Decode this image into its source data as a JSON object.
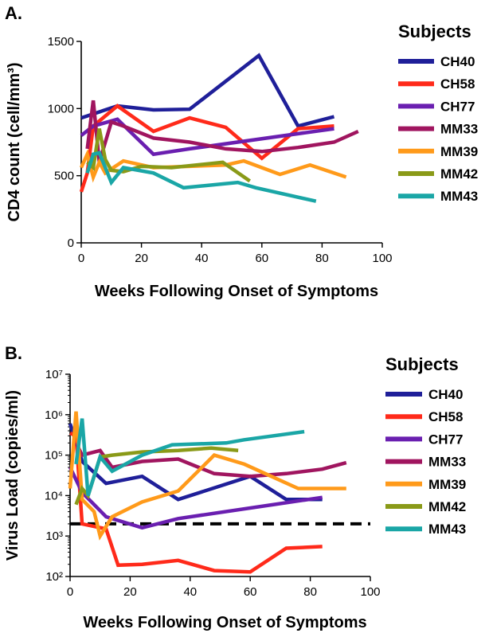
{
  "chart_data": [
    {
      "panel": "A.",
      "type": "line",
      "xlabel": "Weeks Following Onset of Symptoms",
      "ylabel": "CD4 count (cell/mm³)",
      "xlim": [
        0,
        100
      ],
      "ylim": [
        0,
        1500
      ],
      "xticks": [
        0,
        20,
        40,
        60,
        80,
        100
      ],
      "yticks": [
        0,
        500,
        1000,
        1500
      ],
      "legend_title": "Subjects",
      "legend_position": "right",
      "series": [
        {
          "name": "CH40",
          "color": "#1f1f99",
          "points": [
            [
              0,
              930
            ],
            [
              12,
              1020
            ],
            [
              24,
              990
            ],
            [
              36,
              995
            ],
            [
              59,
              1395
            ],
            [
              72,
              870
            ],
            [
              84,
              940
            ]
          ]
        },
        {
          "name": "CH58",
          "color": "#ff2a1a",
          "points": [
            [
              0,
              380
            ],
            [
              2,
              520
            ],
            [
              4,
              870
            ],
            [
              12,
              1020
            ],
            [
              24,
              830
            ],
            [
              36,
              930
            ],
            [
              48,
              860
            ],
            [
              60,
              630
            ],
            [
              72,
              850
            ],
            [
              84,
              870
            ]
          ]
        },
        {
          "name": "CH77",
          "color": "#6a1fb0",
          "points": [
            [
              0,
              800
            ],
            [
              4,
              870
            ],
            [
              12,
              920
            ],
            [
              24,
              660
            ],
            [
              36,
              700
            ],
            [
              84,
              850
            ]
          ]
        },
        {
          "name": "MM33",
          "color": "#a0155f",
          "points": [
            [
              2,
              700
            ],
            [
              4,
              1060
            ],
            [
              6,
              600
            ],
            [
              10,
              900
            ],
            [
              14,
              870
            ],
            [
              24,
              780
            ],
            [
              36,
              750
            ],
            [
              48,
              700
            ],
            [
              60,
              680
            ],
            [
              72,
              710
            ],
            [
              84,
              750
            ],
            [
              92,
              830
            ]
          ]
        },
        {
          "name": "MM39",
          "color": "#ff9a1a",
          "points": [
            [
              0,
              560
            ],
            [
              2,
              660
            ],
            [
              4,
              490
            ],
            [
              6,
              600
            ],
            [
              8,
              520
            ],
            [
              14,
              610
            ],
            [
              24,
              560
            ],
            [
              36,
              570
            ],
            [
              48,
              580
            ],
            [
              54,
              610
            ],
            [
              66,
              510
            ],
            [
              76,
              580
            ],
            [
              88,
              490
            ]
          ]
        },
        {
          "name": "MM42",
          "color": "#8a9a18",
          "points": [
            [
              2,
              600
            ],
            [
              4,
              560
            ],
            [
              6,
              850
            ],
            [
              8,
              620
            ],
            [
              10,
              540
            ],
            [
              14,
              530
            ],
            [
              20,
              570
            ],
            [
              30,
              560
            ],
            [
              47,
              600
            ],
            [
              56,
              460
            ]
          ]
        },
        {
          "name": "MM43",
          "color": "#1aa6a6",
          "points": [
            [
              2,
              520
            ],
            [
              4,
              660
            ],
            [
              6,
              670
            ],
            [
              10,
              450
            ],
            [
              14,
              560
            ],
            [
              24,
              520
            ],
            [
              34,
              410
            ],
            [
              52,
              450
            ],
            [
              58,
              410
            ],
            [
              78,
              310
            ]
          ]
        }
      ]
    },
    {
      "panel": "B.",
      "type": "line",
      "xlabel": "Weeks Following Onset of Symptoms",
      "ylabel": "Virus Load (copies/ml)",
      "yscale": "log",
      "xlim": [
        0,
        100
      ],
      "ylim": [
        100,
        10000000
      ],
      "xticks": [
        0,
        20,
        40,
        60,
        80,
        100
      ],
      "ytick_labels": [
        "10²",
        "10³",
        "10⁴",
        "10⁵",
        "10⁶",
        "10⁷"
      ],
      "threshold_line": 2000,
      "legend_title": "Subjects",
      "legend_position": "right",
      "series": [
        {
          "name": "CH40",
          "color": "#1f1f99",
          "points": [
            [
              0,
              600000
            ],
            [
              4,
              70000
            ],
            [
              12,
              20000
            ],
            [
              24,
              30000
            ],
            [
              36,
              8000
            ],
            [
              60,
              30000
            ],
            [
              72,
              8000
            ],
            [
              84,
              8000
            ]
          ]
        },
        {
          "name": "CH58",
          "color": "#ff2a1a",
          "points": [
            [
              0,
              350000
            ],
            [
              2,
              300000
            ],
            [
              4,
              2000
            ],
            [
              12,
              1500
            ],
            [
              16,
              190
            ],
            [
              24,
              200
            ],
            [
              36,
              250
            ],
            [
              48,
              140
            ],
            [
              60,
              130
            ],
            [
              72,
              500
            ],
            [
              84,
              550
            ]
          ]
        },
        {
          "name": "CH77",
          "color": "#6a1fb0",
          "points": [
            [
              0,
              50000
            ],
            [
              4,
              12000
            ],
            [
              12,
              3000
            ],
            [
              24,
              1600
            ],
            [
              36,
              2700
            ],
            [
              84,
              9000
            ]
          ]
        },
        {
          "name": "MM33",
          "color": "#a0155f",
          "points": [
            [
              2,
              200000
            ],
            [
              4,
              100000
            ],
            [
              10,
              130000
            ],
            [
              14,
              50000
            ],
            [
              24,
              70000
            ],
            [
              36,
              80000
            ],
            [
              48,
              35000
            ],
            [
              60,
              30000
            ],
            [
              72,
              35000
            ],
            [
              84,
              45000
            ],
            [
              92,
              65000
            ]
          ]
        },
        {
          "name": "MM39",
          "color": "#ff9a1a",
          "points": [
            [
              0,
              15000
            ],
            [
              2,
              1200000
            ],
            [
              4,
              8000
            ],
            [
              8,
              4000
            ],
            [
              10,
              1000
            ],
            [
              14,
              3000
            ],
            [
              24,
              7000
            ],
            [
              36,
              13000
            ],
            [
              48,
              100000
            ],
            [
              58,
              60000
            ],
            [
              76,
              15000
            ],
            [
              92,
              15000
            ]
          ]
        },
        {
          "name": "MM42",
          "color": "#8a9a18",
          "points": [
            [
              2,
              6000
            ],
            [
              4,
              15000
            ],
            [
              6,
              10000
            ],
            [
              10,
              90000
            ],
            [
              14,
              100000
            ],
            [
              24,
              120000
            ],
            [
              36,
              130000
            ],
            [
              47,
              150000
            ],
            [
              56,
              130000
            ]
          ]
        },
        {
          "name": "MM43",
          "color": "#1aa6a6",
          "points": [
            [
              2,
              60000
            ],
            [
              4,
              800000
            ],
            [
              6,
              10000
            ],
            [
              10,
              90000
            ],
            [
              14,
              40000
            ],
            [
              24,
              100000
            ],
            [
              34,
              180000
            ],
            [
              52,
              200000
            ],
            [
              58,
              240000
            ],
            [
              78,
              380000
            ]
          ]
        }
      ]
    }
  ]
}
